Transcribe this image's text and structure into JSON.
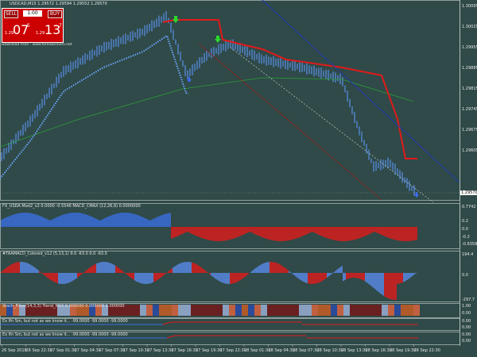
{
  "header": {
    "symbol_info": "USDCAD,M15  1.29572 1.29594 1.29552 1.29570"
  },
  "trade_panel": {
    "sell": "SELL",
    "lot": "1.00",
    "buy": "BUY",
    "sell_prefix": "1.29",
    "sell_big": "07",
    "sell_sup": "5",
    "buy_prefix": "1.29",
    "buy_big": "13",
    "buy_sup": "7"
  },
  "watermark": "Download from : www.forexwinners.net",
  "price_axis": [
    "1.30095",
    "1.30025",
    "1.29955",
    "1.29885",
    "1.29815",
    "1.29745",
    "1.29675",
    "1.29605"
  ],
  "current_price": "1.29570",
  "indicators": [
    {
      "title": "FX_USDA Mod2_v2 0.0000 -0.5546  MACD_CMAX (12,26,9) 0.0000000",
      "axis_labels": [
        "0.7742",
        "0.2",
        "0.0",
        "-0.2",
        "-0.6358"
      ]
    },
    {
      "title": "#TAAMACD_Colored_v12 (5,13,1) 9.0 -63.0 0.0 -63.0",
      "axis_labels": [
        "194.4",
        "0.0",
        "-297.7"
      ]
    },
    {
      "title": "Stoch_Filter(14,3,3) Trend_M15 0.000000 0.000000 1.000000",
      "axis_labels": [
        "1.00",
        "0.00"
      ]
    },
    {
      "title": "Ex Ifn Sm, but not as we know it... -99.0000 -99.0000 -99.0000",
      "axis_labels": [
        "0.00",
        "0.00"
      ]
    },
    {
      "title": "Ex Ifn Sm, but not as we know it... -99.0000 -99.0000 -99.0000",
      "axis_labels": [
        "0.00",
        "0.00"
      ]
    }
  ],
  "time_axis": [
    "26 Sep 2018",
    "26 Sep 22:30",
    "27 Sep 01:30",
    "27 Sep 04:30",
    "27 Sep 07:30",
    "27 Sep 10:30",
    "27 Sep 13:30",
    "27 Sep 16:30",
    "27 Sep 19:30",
    "27 Sep 22:30",
    "28 Sep 01:30",
    "28 Sep 04:30",
    "28 Sep 07:30",
    "28 Sep 10:30",
    "28 Sep 13:30",
    "28 Sep 16:30",
    "28 Sep 19:30",
    "28 Sep 22:30"
  ]
}
